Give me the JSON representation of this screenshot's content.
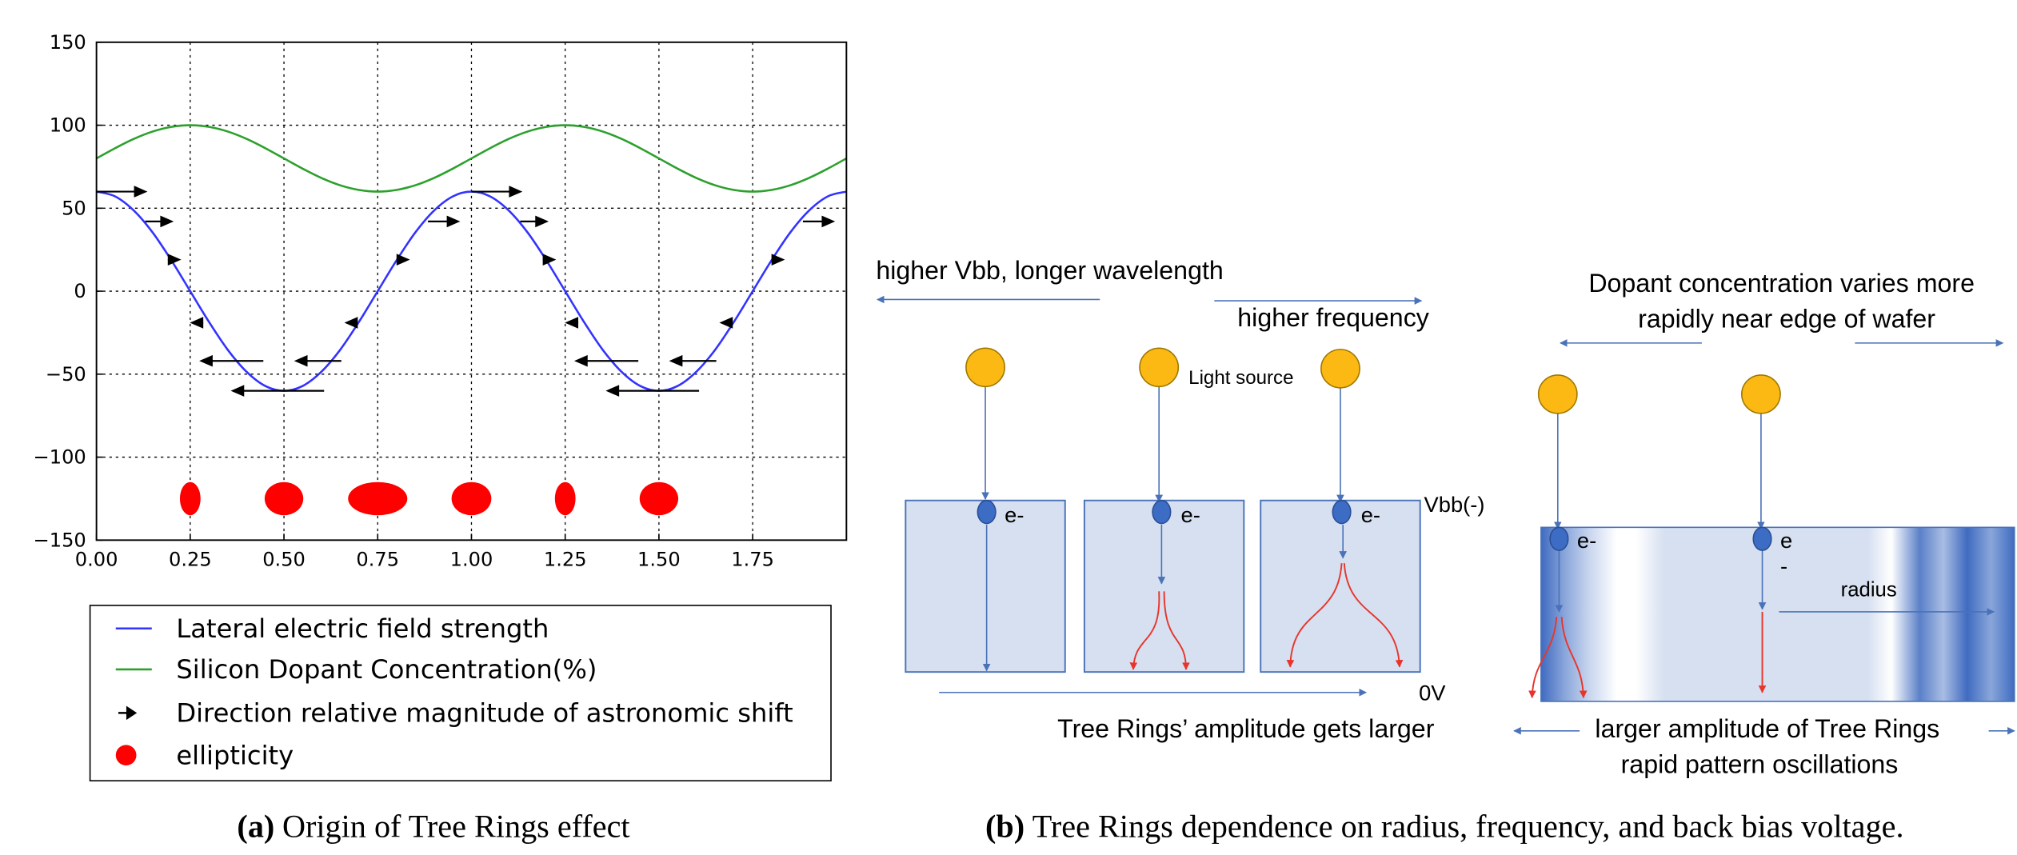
{
  "chart_data": {
    "type": "line",
    "xlim": [
      0,
      2
    ],
    "ylim": [
      -150,
      150
    ],
    "xticks": [
      {
        "value": 0,
        "label": "0.00"
      },
      0.25,
      {
        "value": 0.5,
        "label": "0.50"
      },
      0.75,
      {
        "value": 1,
        "label": "1.00"
      },
      1.25,
      {
        "value": 1.5,
        "label": "1.50"
      },
      1.75
    ],
    "yticks": [
      {
        "value": -150,
        "label": "−150"
      },
      {
        "value": -100,
        "label": "−100"
      },
      {
        "value": -50,
        "label": "−50"
      },
      0,
      50,
      100,
      150
    ],
    "grid": true,
    "x": [
      0,
      0.05,
      0.1,
      0.15,
      0.2,
      0.25,
      0.3,
      0.35,
      0.4,
      0.45,
      0.5,
      0.55,
      0.6,
      0.65,
      0.7,
      0.75,
      0.8,
      0.85,
      0.9,
      0.95,
      1,
      1.05,
      1.1,
      1.15,
      1.2,
      1.25,
      1.3,
      1.35,
      1.4,
      1.45,
      1.5,
      1.55,
      1.6,
      1.65,
      1.7,
      1.75,
      1.8,
      1.85,
      1.9,
      1.95,
      2
    ],
    "series": [
      {
        "name": "Lateral electric field strength",
        "color": "#3333ff",
        "values": [
          60,
          57.1,
          48.5,
          35.3,
          18.5,
          0,
          -18.5,
          -35.3,
          -48.5,
          -57.1,
          -60,
          -57.1,
          -48.5,
          -35.3,
          -18.5,
          0,
          18.5,
          35.3,
          48.5,
          57.1,
          60,
          57.1,
          48.5,
          35.3,
          18.5,
          0,
          -18.5,
          -35.3,
          -48.5,
          -57.1,
          -60,
          -57.1,
          -48.5,
          -35.3,
          -18.5,
          0,
          18.5,
          35.3,
          48.5,
          57.1,
          60
        ]
      },
      {
        "name": "Silicon Dopant Concentration(%)",
        "color": "#2ca02c",
        "values": [
          80,
          86.2,
          91.8,
          96.2,
          99,
          100,
          99,
          96.2,
          91.8,
          86.2,
          80,
          73.8,
          68.2,
          63.8,
          61,
          60,
          61,
          63.8,
          68.2,
          73.8,
          80,
          86.2,
          91.8,
          96.2,
          99,
          100,
          99,
          96.2,
          91.8,
          86.2,
          80,
          73.8,
          68.2,
          63.8,
          61,
          60,
          61,
          63.8,
          68.2,
          73.8,
          80
        ]
      }
    ],
    "arrows": {
      "name": "Direction relative magnitude of astronomic shift",
      "color": "#000000",
      "x": [
        0,
        0.13,
        0.19,
        0.285,
        0.445,
        0.607,
        0.653,
        0.692,
        0.805,
        0.884,
        1,
        1.13,
        1.19,
        1.285,
        1.445,
        1.607,
        1.653,
        1.692,
        1.805,
        1.884
      ],
      "values": [
        60,
        42,
        19,
        -19,
        -42,
        -60,
        -42,
        -19,
        19,
        42,
        60,
        42,
        19,
        -19,
        -42,
        -60,
        -42,
        -19,
        19,
        42
      ],
      "dx": [
        0.13,
        0.07,
        0.03,
        -0.03,
        -0.165,
        -0.243,
        -0.12,
        -0.025,
        0.025,
        0.08,
        0.13,
        0.07,
        0.03,
        -0.03,
        -0.165,
        -0.243,
        -0.12,
        -0.025,
        0.025,
        0.08
      ]
    },
    "ellipses": {
      "name": "ellipticity",
      "color": "#ff0000",
      "x": [
        0.25,
        0.5,
        0.75,
        1,
        1.25,
        1.5
      ],
      "values": [
        -125,
        -125,
        -125,
        -125,
        -125,
        -125
      ],
      "width": [
        0.055,
        0.103,
        0.158,
        0.106,
        0.055,
        0.103
      ],
      "height": [
        20,
        20,
        20,
        20,
        20,
        20
      ]
    },
    "caption_label": "(a)",
    "caption": "Origin of Tree Rings effect"
  },
  "diagram": {
    "wavelength_label": "higher Vbb, longer wavelength",
    "frequency_label": "higher frequency",
    "light_source_label": "Light source",
    "electron_labels": [
      "e-",
      "e-",
      "e-",
      "e-"
    ],
    "right_electron_label": [
      "e",
      "-"
    ],
    "vbb_label": "Vbb(-)",
    "zero_label": "0V",
    "amplitude_label": "Tree Rings’ amplitude gets larger",
    "dopant_label": [
      "Dopant concentration varies more",
      "rapidly near edge of wafer"
    ],
    "radius_label": "radius",
    "right_bottom_label": [
      "larger amplitude of Tree Rings",
      "rapid pattern oscillations"
    ],
    "caption_label": "(b)",
    "caption": "Tree Rings dependence on radius, frequency, and back bias voltage."
  }
}
